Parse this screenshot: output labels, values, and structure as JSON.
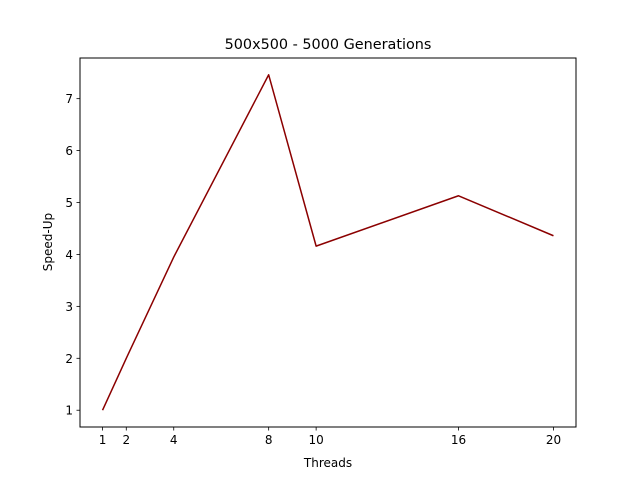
{
  "chart_data": {
    "type": "line",
    "title": "500x500 - 5000 Generations",
    "xlabel": "Threads",
    "ylabel": "Speed-Up",
    "x": [
      1,
      2,
      4,
      8,
      10,
      16,
      20
    ],
    "series": [
      {
        "values": [
          1.0,
          2.0,
          3.95,
          7.46,
          4.16,
          5.13,
          4.36
        ],
        "color": "#8b0000"
      }
    ],
    "xticks": [
      1,
      2,
      4,
      8,
      10,
      16,
      20
    ],
    "yticks": [
      1,
      2,
      3,
      4,
      5,
      6,
      7
    ],
    "xlim": [
      0.05,
      20.95
    ],
    "ylim": [
      0.677,
      7.783
    ],
    "grid": false
  }
}
